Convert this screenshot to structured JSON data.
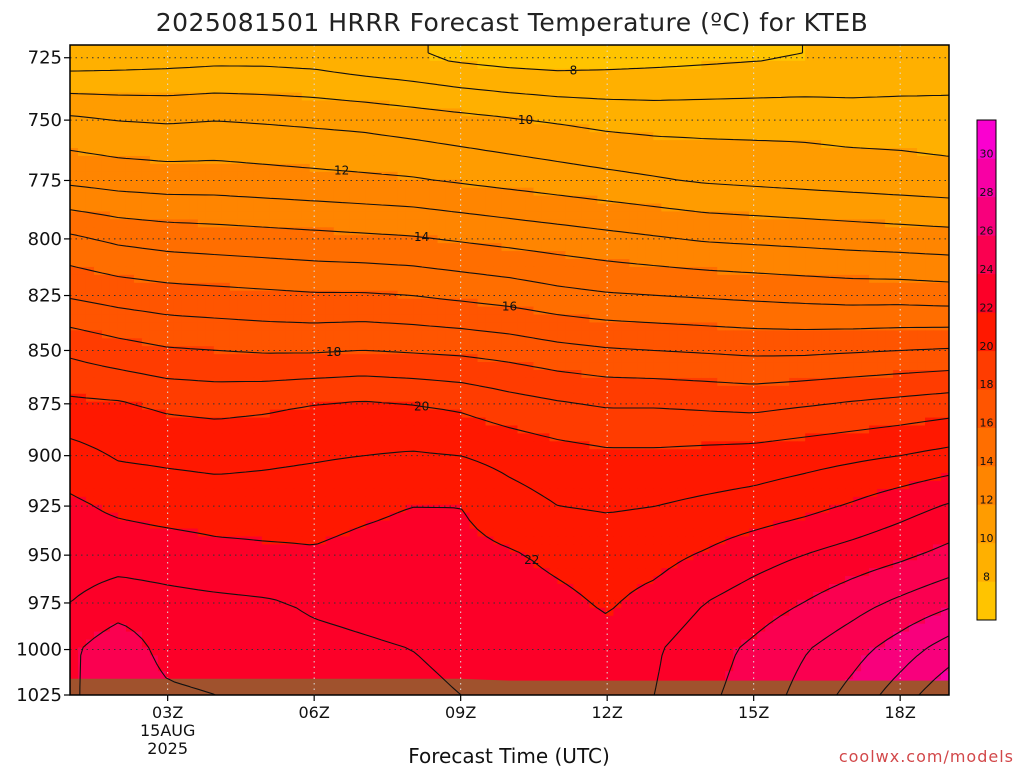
{
  "title": "2025081501 HRRR Forecast Temperature (ºC) for KTEB",
  "credit": "coolwx.com/models",
  "chart_data": {
    "type": "heatmap",
    "title": "2025081501 HRRR Forecast Temperature (ºC) for KTEB",
    "xlabel": "Forecast Time (UTC)",
    "ylabel": "",
    "x_hours": [
      1,
      2,
      3,
      4,
      5,
      6,
      7,
      8,
      9,
      10,
      11,
      12,
      13,
      14,
      15,
      16,
      17,
      18,
      19
    ],
    "xlim": [
      1,
      19
    ],
    "x_ticks": [
      {
        "hour": 3,
        "label": "03Z",
        "date": "15AUG",
        "year": "2025"
      },
      {
        "hour": 6,
        "label": "06Z"
      },
      {
        "hour": 9,
        "label": "09Z"
      },
      {
        "hour": 12,
        "label": "12Z"
      },
      {
        "hour": 15,
        "label": "15Z"
      },
      {
        "hour": 18,
        "label": "18Z"
      }
    ],
    "y_ticks": [
      725,
      750,
      775,
      800,
      825,
      850,
      875,
      900,
      925,
      950,
      975,
      1000,
      1025
    ],
    "ylim": [
      1025,
      720
    ],
    "y_scale": "log-pressure",
    "grid": "dotted",
    "contour_interval": 1,
    "contour_labels": [
      8,
      10,
      12,
      14,
      16,
      18,
      20,
      22
    ],
    "colorbar": {
      "levels": [
        6,
        8,
        10,
        12,
        14,
        16,
        18,
        20,
        22,
        24,
        26,
        28,
        30,
        32
      ],
      "labels": [
        8,
        10,
        12,
        14,
        16,
        18,
        20,
        22,
        24,
        26,
        28,
        30
      ],
      "colors": [
        "#ffc400",
        "#ffb000",
        "#ff9c00",
        "#ff8500",
        "#ff6e00",
        "#ff5500",
        "#ff3c00",
        "#ff1800",
        "#fc0028",
        "#fa0050",
        "#f8007c",
        "#f800a4",
        "#fa00d0"
      ],
      "placement": "right"
    },
    "pressure_levels": [
      1025,
      1000,
      975,
      950,
      925,
      900,
      875,
      850,
      825,
      800,
      775,
      750,
      725
    ],
    "temperature": [
      [
        23.8,
        24.8,
        24.2,
        24.0,
        23.6,
        23.4,
        23.3,
        23.2,
        23.0,
        22.9,
        22.8,
        22.8,
        23.0,
        23.8,
        24.4,
        25.3,
        26.3,
        27.5,
        28.8
      ],
      [
        23.8,
        24.7,
        23.6,
        23.4,
        23.3,
        23.2,
        23.1,
        23.0,
        22.8,
        22.6,
        22.4,
        22.3,
        22.9,
        23.6,
        24.2,
        24.9,
        25.6,
        26.5,
        27.5
      ],
      [
        23.0,
        23.5,
        23.3,
        23.2,
        23.1,
        22.9,
        22.8,
        22.7,
        22.6,
        22.4,
        22.2,
        21.9,
        22.3,
        23.0,
        23.5,
        24.0,
        24.6,
        25.2,
        25.8
      ],
      [
        22.5,
        22.6,
        22.5,
        22.3,
        22.2,
        22.1,
        22.3,
        22.4,
        22.3,
        22.1,
        21.8,
        21.6,
        21.7,
        22.1,
        22.6,
        23.0,
        23.4,
        23.8,
        24.3
      ],
      [
        22.2,
        21.8,
        21.6,
        21.5,
        21.5,
        21.6,
        21.8,
        22.0,
        22.0,
        21.4,
        21.0,
        20.9,
        21.0,
        21.2,
        21.4,
        21.7,
        22.1,
        22.6,
        23.1
      ],
      [
        21.4,
        20.9,
        20.8,
        20.7,
        20.8,
        20.9,
        21.0,
        21.1,
        21.0,
        20.7,
        20.4,
        20.2,
        20.2,
        20.3,
        20.4,
        20.6,
        20.8,
        21.0,
        21.3
      ],
      [
        20.2,
        20.1,
        19.8,
        19.7,
        19.8,
        20.0,
        20.1,
        20.0,
        19.8,
        19.4,
        19.1,
        18.9,
        18.9,
        18.8,
        18.7,
        18.9,
        19.1,
        19.3,
        19.5
      ],
      [
        18.8,
        18.4,
        18.1,
        18.0,
        17.9,
        17.9,
        18.0,
        17.9,
        17.8,
        17.6,
        17.3,
        17.1,
        17.0,
        16.9,
        16.8,
        16.8,
        16.9,
        17.0,
        17.1
      ],
      [
        16.9,
        16.6,
        16.4,
        16.3,
        16.2,
        16.1,
        16.1,
        16.0,
        15.8,
        15.6,
        15.3,
        15.1,
        15.0,
        14.9,
        14.8,
        14.7,
        14.6,
        14.6,
        14.5
      ],
      [
        15.2,
        14.8,
        14.6,
        14.5,
        14.4,
        14.3,
        14.2,
        14.1,
        13.9,
        13.7,
        13.5,
        13.3,
        13.1,
        12.9,
        12.8,
        12.7,
        12.6,
        12.5,
        12.4
      ],
      [
        12.8,
        12.6,
        12.5,
        12.5,
        12.4,
        12.3,
        12.2,
        12.1,
        11.9,
        11.7,
        11.5,
        11.3,
        11.1,
        10.9,
        10.8,
        10.7,
        10.6,
        10.5,
        10.4
      ],
      [
        11.2,
        11.0,
        10.9,
        11.0,
        10.9,
        10.8,
        10.7,
        10.5,
        10.3,
        10.1,
        9.9,
        9.7,
        9.6,
        9.6,
        9.6,
        9.6,
        9.5,
        9.5,
        9.4
      ],
      [
        8.4,
        8.5,
        8.6,
        8.7,
        8.7,
        8.6,
        8.3,
        8.1,
        7.8,
        7.6,
        7.5,
        7.6,
        7.7,
        7.8,
        7.9,
        8.0,
        8.1,
        8.2,
        8.4
      ]
    ],
    "surface_pressure": [
      1016,
      1016,
      1016,
      1016,
      1016,
      1016,
      1016,
      1016,
      1016,
      1017,
      1017,
      1017,
      1017,
      1017,
      1017,
      1017,
      1017,
      1017,
      1017
    ],
    "surface_color": "#a0522d"
  }
}
